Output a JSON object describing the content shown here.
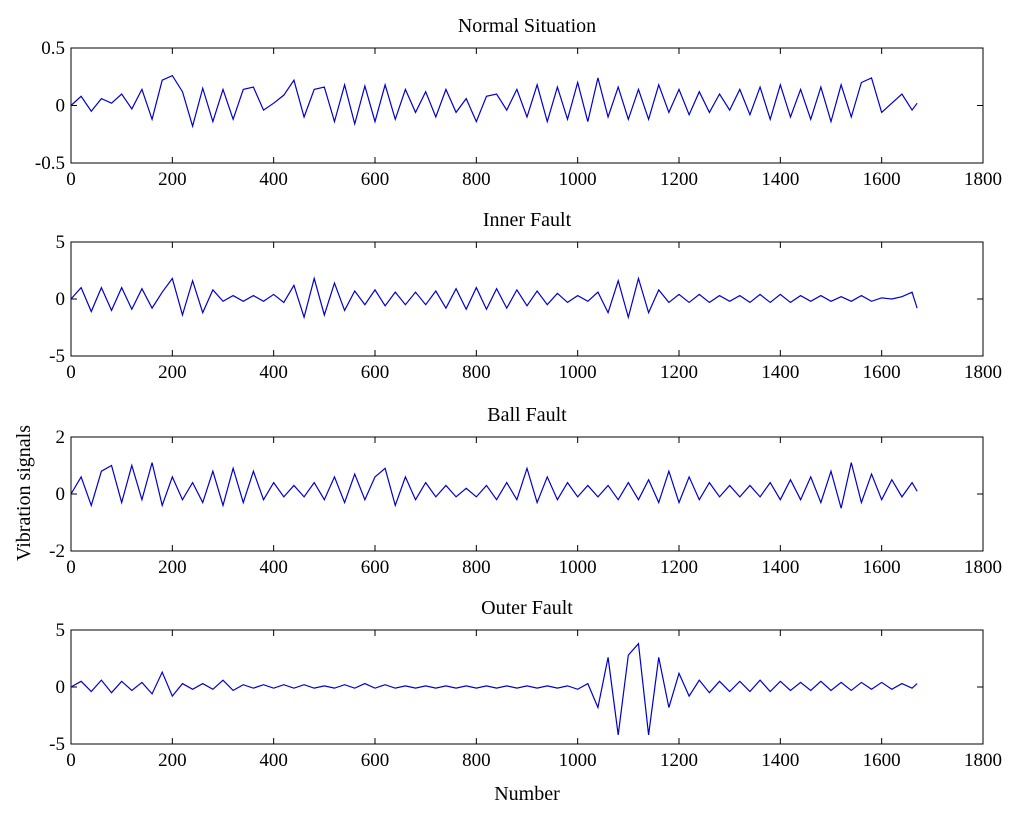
{
  "figure": {
    "xlabel": "Number",
    "ylabel": "Vibration signals",
    "line_color": "#0000cc"
  },
  "chart_data": [
    {
      "type": "line",
      "title": "Normal Situation",
      "xlim": [
        0,
        1800
      ],
      "ylim": [
        -0.5,
        0.5
      ],
      "xticks": [
        "0",
        "200",
        "400",
        "600",
        "800",
        "1000",
        "1200",
        "1400",
        "1600",
        "1800"
      ],
      "yticks": [
        "-0.5",
        "0",
        "0.5"
      ],
      "series": [
        {
          "x": [
            0,
            20,
            40,
            60,
            80,
            100,
            120,
            140,
            160,
            180,
            200,
            220,
            240,
            260,
            280,
            300,
            320,
            340,
            360,
            380,
            400,
            420,
            440,
            460,
            480,
            500,
            520,
            540,
            560,
            580,
            600,
            620,
            640,
            660,
            680,
            700,
            720,
            740,
            760,
            780,
            800,
            820,
            840,
            860,
            880,
            900,
            920,
            940,
            960,
            980,
            1000,
            1020,
            1040,
            1060,
            1080,
            1100,
            1120,
            1140,
            1160,
            1180,
            1200,
            1220,
            1240,
            1260,
            1280,
            1300,
            1320,
            1340,
            1360,
            1380,
            1400,
            1420,
            1440,
            1460,
            1480,
            1500,
            1520,
            1540,
            1560,
            1580,
            1600,
            1620,
            1640,
            1660,
            1670
          ],
          "y": [
            0.0,
            0.08,
            -0.05,
            0.06,
            0.02,
            0.1,
            -0.03,
            0.14,
            -0.12,
            0.22,
            0.26,
            0.12,
            -0.18,
            0.15,
            -0.14,
            0.14,
            -0.12,
            0.14,
            0.16,
            -0.04,
            0.02,
            0.09,
            0.22,
            -0.1,
            0.14,
            0.16,
            -0.14,
            0.18,
            -0.16,
            0.17,
            -0.14,
            0.18,
            -0.12,
            0.14,
            -0.06,
            0.12,
            -0.1,
            0.14,
            -0.06,
            0.06,
            -0.14,
            0.08,
            0.1,
            -0.04,
            0.14,
            -0.1,
            0.18,
            -0.14,
            0.16,
            -0.12,
            0.2,
            -0.14,
            0.24,
            -0.1,
            0.16,
            -0.12,
            0.14,
            -0.12,
            0.18,
            -0.06,
            0.14,
            -0.08,
            0.12,
            -0.06,
            0.1,
            -0.04,
            0.14,
            -0.08,
            0.16,
            -0.12,
            0.18,
            -0.1,
            0.14,
            -0.12,
            0.16,
            -0.14,
            0.18,
            -0.1,
            0.2,
            0.24,
            -0.06,
            0.02,
            0.1,
            -0.04,
            0.02
          ]
        }
      ]
    },
    {
      "type": "line",
      "title": "Inner Fault",
      "xlim": [
        0,
        1800
      ],
      "ylim": [
        -5,
        5
      ],
      "xticks": [
        "0",
        "200",
        "400",
        "600",
        "800",
        "1000",
        "1200",
        "1400",
        "1600",
        "1800"
      ],
      "yticks": [
        "-5",
        "0",
        "5"
      ],
      "series": [
        {
          "x": [
            0,
            20,
            40,
            60,
            80,
            100,
            120,
            140,
            160,
            180,
            200,
            220,
            240,
            260,
            280,
            300,
            320,
            340,
            360,
            380,
            400,
            420,
            440,
            460,
            480,
            500,
            520,
            540,
            560,
            580,
            600,
            620,
            640,
            660,
            680,
            700,
            720,
            740,
            760,
            780,
            800,
            820,
            840,
            860,
            880,
            900,
            920,
            940,
            960,
            980,
            1000,
            1020,
            1040,
            1060,
            1080,
            1100,
            1120,
            1140,
            1160,
            1180,
            1200,
            1220,
            1240,
            1260,
            1280,
            1300,
            1320,
            1340,
            1360,
            1380,
            1400,
            1420,
            1440,
            1460,
            1480,
            1500,
            1520,
            1540,
            1560,
            1580,
            1600,
            1620,
            1640,
            1660,
            1670
          ],
          "y": [
            0.0,
            1.0,
            -1.1,
            1.0,
            -1.0,
            1.0,
            -0.9,
            0.9,
            -0.8,
            0.6,
            1.8,
            -1.4,
            1.6,
            -1.2,
            0.8,
            -0.2,
            0.3,
            -0.2,
            0.3,
            -0.2,
            0.4,
            -0.3,
            1.2,
            -1.6,
            1.8,
            -1.4,
            1.4,
            -1.0,
            0.7,
            -0.5,
            0.8,
            -0.6,
            0.6,
            -0.5,
            0.6,
            -0.5,
            0.7,
            -0.8,
            0.9,
            -0.9,
            1.0,
            -0.9,
            0.9,
            -0.8,
            0.8,
            -0.6,
            0.7,
            -0.5,
            0.5,
            -0.3,
            0.3,
            -0.2,
            0.6,
            -1.2,
            1.6,
            -1.6,
            1.8,
            -1.2,
            0.8,
            -0.3,
            0.4,
            -0.3,
            0.4,
            -0.3,
            0.3,
            -0.2,
            0.3,
            -0.3,
            0.4,
            -0.3,
            0.4,
            -0.3,
            0.3,
            -0.2,
            0.3,
            -0.2,
            0.2,
            -0.2,
            0.3,
            -0.2,
            0.1,
            0.0,
            0.2,
            0.6,
            -0.8
          ]
        }
      ]
    },
    {
      "type": "line",
      "title": "Ball Fault",
      "xlim": [
        0,
        1800
      ],
      "ylim": [
        -2,
        2
      ],
      "xticks": [
        "0",
        "200",
        "400",
        "600",
        "800",
        "1000",
        "1200",
        "1400",
        "1600",
        "1800"
      ],
      "yticks": [
        "-2",
        "0",
        "2"
      ],
      "series": [
        {
          "x": [
            0,
            20,
            40,
            60,
            80,
            100,
            120,
            140,
            160,
            180,
            200,
            220,
            240,
            260,
            280,
            300,
            320,
            340,
            360,
            380,
            400,
            420,
            440,
            460,
            480,
            500,
            520,
            540,
            560,
            580,
            600,
            620,
            640,
            660,
            680,
            700,
            720,
            740,
            760,
            780,
            800,
            820,
            840,
            860,
            880,
            900,
            920,
            940,
            960,
            980,
            1000,
            1020,
            1040,
            1060,
            1080,
            1100,
            1120,
            1140,
            1160,
            1180,
            1200,
            1220,
            1240,
            1260,
            1280,
            1300,
            1320,
            1340,
            1360,
            1380,
            1400,
            1420,
            1440,
            1460,
            1480,
            1500,
            1520,
            1540,
            1560,
            1580,
            1600,
            1620,
            1640,
            1660,
            1670
          ],
          "y": [
            0.0,
            0.6,
            -0.4,
            0.8,
            1.0,
            -0.3,
            1.0,
            -0.2,
            1.1,
            -0.4,
            0.6,
            -0.2,
            0.4,
            -0.3,
            0.8,
            -0.4,
            0.9,
            -0.3,
            0.8,
            -0.2,
            0.4,
            -0.1,
            0.3,
            -0.1,
            0.4,
            -0.2,
            0.6,
            -0.3,
            0.7,
            -0.2,
            0.6,
            0.9,
            -0.4,
            0.6,
            -0.2,
            0.4,
            -0.1,
            0.3,
            -0.1,
            0.2,
            -0.1,
            0.3,
            -0.2,
            0.4,
            -0.2,
            0.9,
            -0.3,
            0.6,
            -0.2,
            0.4,
            -0.1,
            0.3,
            -0.1,
            0.3,
            -0.2,
            0.4,
            -0.2,
            0.5,
            -0.3,
            0.8,
            -0.3,
            0.6,
            -0.2,
            0.4,
            -0.1,
            0.3,
            -0.1,
            0.3,
            -0.1,
            0.4,
            -0.2,
            0.5,
            -0.2,
            0.6,
            -0.3,
            0.8,
            -0.5,
            1.1,
            -0.3,
            0.7,
            -0.2,
            0.5,
            -0.1,
            0.4,
            0.1
          ]
        }
      ]
    },
    {
      "type": "line",
      "title": "Outer Fault",
      "xlim": [
        0,
        1800
      ],
      "ylim": [
        -5,
        5
      ],
      "xticks": [
        "0",
        "200",
        "400",
        "600",
        "800",
        "1000",
        "1200",
        "1400",
        "1600",
        "1800"
      ],
      "yticks": [
        "-5",
        "0",
        "5"
      ],
      "series": [
        {
          "x": [
            0,
            20,
            40,
            60,
            80,
            100,
            120,
            140,
            160,
            180,
            200,
            220,
            240,
            260,
            280,
            300,
            320,
            340,
            360,
            380,
            400,
            420,
            440,
            460,
            480,
            500,
            520,
            540,
            560,
            580,
            600,
            620,
            640,
            660,
            680,
            700,
            720,
            740,
            760,
            780,
            800,
            820,
            840,
            860,
            880,
            900,
            920,
            940,
            960,
            980,
            1000,
            1020,
            1040,
            1060,
            1080,
            1100,
            1120,
            1140,
            1160,
            1180,
            1200,
            1220,
            1240,
            1260,
            1280,
            1300,
            1320,
            1340,
            1360,
            1380,
            1400,
            1420,
            1440,
            1460,
            1480,
            1500,
            1520,
            1540,
            1560,
            1580,
            1600,
            1620,
            1640,
            1660,
            1670
          ],
          "y": [
            0.0,
            0.5,
            -0.4,
            0.6,
            -0.5,
            0.5,
            -0.3,
            0.4,
            -0.6,
            1.3,
            -0.8,
            0.3,
            -0.2,
            0.3,
            -0.2,
            0.6,
            -0.3,
            0.2,
            -0.1,
            0.2,
            -0.1,
            0.2,
            -0.1,
            0.2,
            -0.1,
            0.1,
            -0.1,
            0.2,
            -0.1,
            0.3,
            -0.1,
            0.2,
            -0.1,
            0.1,
            -0.1,
            0.1,
            -0.1,
            0.1,
            -0.1,
            0.1,
            -0.1,
            0.1,
            -0.1,
            0.1,
            -0.1,
            0.1,
            -0.1,
            0.1,
            -0.1,
            0.1,
            -0.2,
            0.3,
            -1.8,
            2.6,
            -4.2,
            2.8,
            3.8,
            -4.2,
            2.6,
            -1.8,
            1.2,
            -0.8,
            0.6,
            -0.5,
            0.5,
            -0.4,
            0.5,
            -0.4,
            0.6,
            -0.4,
            0.5,
            -0.3,
            0.4,
            -0.3,
            0.5,
            -0.3,
            0.4,
            -0.3,
            0.4,
            -0.2,
            0.4,
            -0.2,
            0.3,
            -0.1,
            0.3
          ]
        }
      ]
    }
  ]
}
